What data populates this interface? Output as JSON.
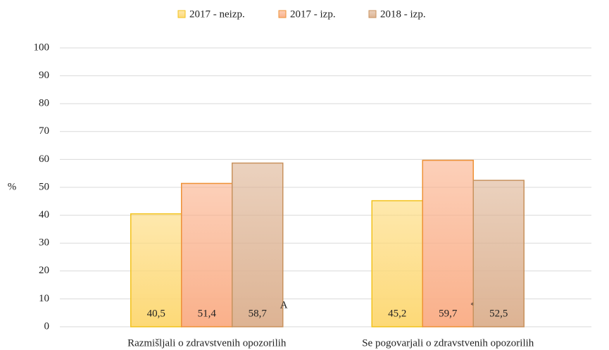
{
  "chart_data": {
    "type": "bar",
    "y_label": "%",
    "categories": [
      "Razmišljali o zdravstvenih opozorilih",
      "Se pogovarjali o zdravstvenih opozorilih"
    ],
    "series": [
      {
        "name": "2017 - neizp.",
        "color": "#fdd977",
        "edge": "#f2c21b",
        "values": [
          40.5,
          45.2
        ],
        "value_labels": [
          "40,5",
          "45,2"
        ],
        "notes": [
          null,
          null
        ]
      },
      {
        "name": "2017 - izp.",
        "color": "#fab08a",
        "edge": "#ee9135",
        "values": [
          51.4,
          59.7
        ],
        "value_labels": [
          "51,4",
          "59,7"
        ],
        "notes": [
          null,
          "*"
        ]
      },
      {
        "name": "2018 - izp.",
        "color": "#ddb393",
        "edge": "#c8925d",
        "values": [
          58.7,
          52.5
        ],
        "value_labels": [
          "58,7",
          "52,5"
        ],
        "notes": [
          "A",
          null
        ]
      }
    ],
    "ylim": [
      0,
      100
    ],
    "yticks": [
      0,
      10,
      20,
      30,
      40,
      50,
      60,
      70,
      80,
      90,
      100
    ],
    "grid": true,
    "legend": "top"
  }
}
